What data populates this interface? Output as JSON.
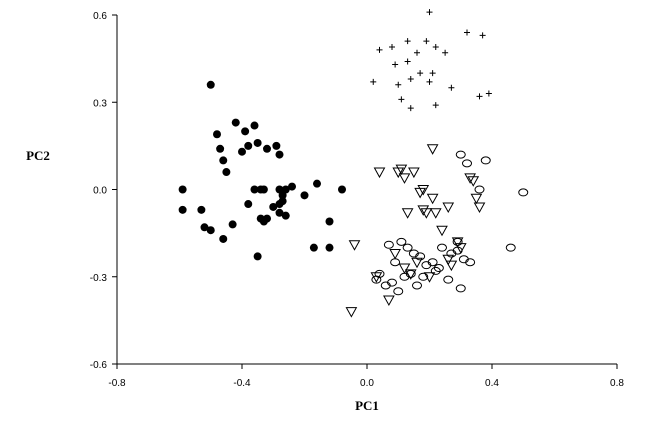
{
  "chart_data": {
    "type": "scatter",
    "title": "",
    "xlabel": "PC1",
    "ylabel": "PC2",
    "xlim": [
      -0.8,
      0.8
    ],
    "ylim": [
      -0.6,
      0.6
    ],
    "x_ticks": [
      -0.8,
      -0.4,
      0.0,
      0.4,
      0.8
    ],
    "x_tick_labels": [
      "-0.8",
      "-0.4",
      "0.0",
      "0.4",
      "0.8"
    ],
    "y_ticks": [
      -0.6,
      -0.3,
      0.0,
      0.3,
      0.6
    ],
    "y_tick_labels": [
      "-0.6",
      "-0.3",
      "0.0",
      "0.3",
      "0.6"
    ],
    "grid": false,
    "legend": false,
    "series": [
      {
        "marker": "filled-circle",
        "color": "#000000",
        "x": [
          -0.5,
          -0.48,
          -0.42,
          -0.39,
          -0.36,
          -0.35,
          -0.38,
          -0.32,
          -0.29,
          -0.28,
          -0.47,
          -0.4,
          -0.46,
          -0.45,
          -0.59,
          -0.59,
          -0.53,
          -0.52,
          -0.5,
          -0.46,
          -0.43,
          -0.38,
          -0.36,
          -0.34,
          -0.33,
          -0.32,
          -0.3,
          -0.28,
          -0.27,
          -0.26,
          -0.28,
          -0.26,
          -0.24,
          -0.2,
          -0.16,
          -0.27,
          -0.28,
          -0.12,
          -0.08,
          -0.12,
          -0.17,
          -0.34,
          -0.35,
          -0.33
        ],
        "y": [
          0.36,
          0.19,
          0.23,
          0.2,
          0.22,
          0.16,
          0.15,
          0.14,
          0.15,
          0.12,
          0.14,
          0.13,
          0.1,
          0.06,
          0.0,
          -0.07,
          -0.07,
          -0.13,
          -0.14,
          -0.17,
          -0.12,
          -0.05,
          0.0,
          -0.1,
          -0.11,
          -0.1,
          -0.06,
          -0.05,
          -0.02,
          -0.09,
          0.0,
          0.0,
          0.01,
          -0.02,
          0.02,
          -0.04,
          -0.08,
          -0.11,
          0.0,
          -0.2,
          -0.2,
          0.0,
          -0.23,
          0.0
        ]
      },
      {
        "marker": "plus",
        "color": "#000000",
        "x": [
          0.2,
          0.32,
          0.37,
          0.04,
          0.08,
          0.13,
          0.16,
          0.19,
          0.22,
          0.25,
          0.09,
          0.13,
          0.17,
          0.21,
          0.14,
          0.02,
          0.1,
          0.27,
          0.36,
          0.39,
          0.2,
          0.11,
          0.14,
          0.22
        ],
        "y": [
          0.61,
          0.54,
          0.53,
          0.48,
          0.49,
          0.51,
          0.47,
          0.51,
          0.49,
          0.47,
          0.43,
          0.44,
          0.4,
          0.4,
          0.38,
          0.37,
          0.36,
          0.35,
          0.32,
          0.33,
          0.37,
          0.31,
          0.28,
          0.29
        ]
      },
      {
        "marker": "open-triangle",
        "color": "#000000",
        "x": [
          0.21,
          0.04,
          0.1,
          0.12,
          0.11,
          0.15,
          0.17,
          0.18,
          0.21,
          0.18,
          0.13,
          0.26,
          0.34,
          0.33,
          0.35,
          0.36,
          0.19,
          0.22,
          0.24,
          0.29,
          0.3,
          0.26,
          0.27,
          0.16,
          0.12,
          0.14,
          0.2,
          0.07,
          0.03,
          -0.04,
          -0.05,
          0.09
        ],
        "y": [
          0.14,
          0.06,
          0.06,
          0.04,
          0.07,
          0.06,
          -0.01,
          0.0,
          -0.03,
          -0.07,
          -0.08,
          -0.06,
          0.03,
          0.04,
          -0.03,
          -0.06,
          -0.08,
          -0.08,
          -0.14,
          -0.18,
          -0.2,
          -0.24,
          -0.26,
          -0.25,
          -0.27,
          -0.29,
          -0.3,
          -0.38,
          -0.3,
          -0.19,
          -0.42,
          -0.22
        ]
      },
      {
        "marker": "open-circle",
        "color": "#000000",
        "x": [
          0.3,
          0.38,
          0.32,
          0.36,
          0.5,
          0.24,
          0.27,
          0.29,
          0.31,
          0.46,
          0.11,
          0.13,
          0.15,
          0.07,
          0.09,
          0.17,
          0.19,
          0.21,
          0.23,
          0.29,
          0.33,
          0.14,
          0.18,
          0.22,
          0.26,
          0.04,
          0.06,
          0.08,
          0.12,
          0.03,
          0.1,
          0.16,
          0.3
        ],
        "y": [
          0.12,
          0.1,
          0.09,
          0.0,
          -0.01,
          -0.2,
          -0.22,
          -0.18,
          -0.24,
          -0.2,
          -0.18,
          -0.2,
          -0.22,
          -0.19,
          -0.25,
          -0.23,
          -0.26,
          -0.25,
          -0.27,
          -0.21,
          -0.25,
          -0.29,
          -0.3,
          -0.28,
          -0.31,
          -0.29,
          -0.33,
          -0.32,
          -0.3,
          -0.31,
          -0.35,
          -0.33,
          -0.34
        ]
      }
    ]
  }
}
